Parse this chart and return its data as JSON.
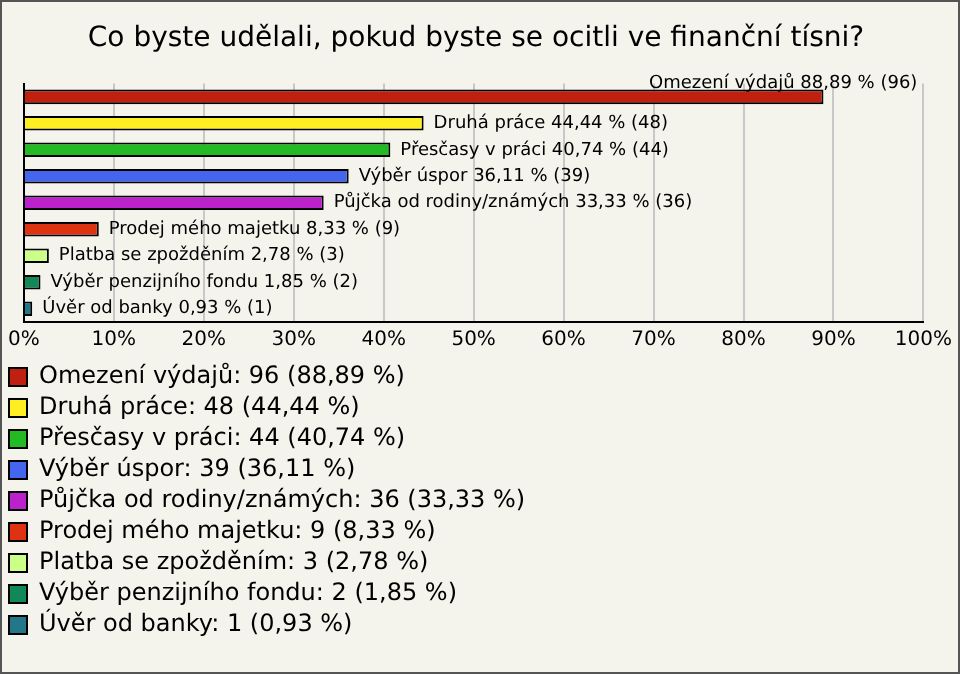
{
  "chart_data": {
    "type": "bar",
    "orientation": "horizontal",
    "stacked": true,
    "title": "Co byste udělali, pokud byste se ocitli ve finanční tísni?",
    "categories": [
      null,
      null,
      null,
      null,
      null,
      null,
      null,
      null,
      null
    ],
    "series": [
      {
        "name": "Omezení výdajů: 96 (88,89 %)",
        "color": "#c0200f",
        "values": [
          88.89,
          null,
          null,
          null,
          null,
          null,
          null,
          null,
          null
        ],
        "value_labels": [
          "Omezení výdajů 88,89 % (96)",
          null,
          null,
          null,
          null,
          null,
          null,
          null,
          null
        ]
      },
      {
        "name": "Druhá práce: 48 (44,44 %)",
        "color": "#ffee22",
        "values": [
          null,
          44.44,
          null,
          null,
          null,
          null,
          null,
          null,
          null
        ],
        "value_labels": [
          null,
          "Druhá práce 44,44 % (48)",
          null,
          null,
          null,
          null,
          null,
          null,
          null
        ]
      },
      {
        "name": "Přesčasy v práci: 44 (40,74 %)",
        "color": "#22bb22",
        "values": [
          null,
          null,
          40.74,
          null,
          null,
          null,
          null,
          null,
          null
        ],
        "value_labels": [
          null,
          null,
          "Přesčasy v práci 40,74 % (44)",
          null,
          null,
          null,
          null,
          null,
          null
        ]
      },
      {
        "name": "Výběr úspor: 39 (36,11 %)",
        "color": "#4466ee",
        "values": [
          null,
          null,
          null,
          36.11,
          null,
          null,
          null,
          null,
          null
        ],
        "value_labels": [
          null,
          null,
          null,
          "Výběr úspor 36,11 % (39)",
          null,
          null,
          null,
          null,
          null
        ]
      },
      {
        "name": "Půjčka od rodiny/známých: 36 (33,33 %)",
        "color": "#bb22cc",
        "values": [
          null,
          null,
          null,
          null,
          33.33,
          null,
          null,
          null,
          null
        ],
        "value_labels": [
          null,
          null,
          null,
          null,
          "Půjčka od rodiny/známých 33,33 % (36)",
          null,
          null,
          null,
          null
        ]
      },
      {
        "name": "Prodej mého majetku: 9 (8,33 %)",
        "color": "#dd3311",
        "values": [
          null,
          null,
          null,
          null,
          null,
          8.33,
          null,
          null,
          null
        ],
        "value_labels": [
          null,
          null,
          null,
          null,
          null,
          "Prodej mého majetku 8,33 % (9)",
          null,
          null,
          null
        ]
      },
      {
        "name": "Platba se zpožděním: 3 (2,78 %)",
        "color": "#ccff88",
        "values": [
          null,
          null,
          null,
          null,
          null,
          null,
          2.78,
          null,
          null
        ],
        "value_labels": [
          null,
          null,
          null,
          null,
          null,
          null,
          "Platba se zpožděním 2,78 % (3)",
          null,
          null
        ]
      },
      {
        "name": "Výběr penzijního fondu: 2 (1,85 %)",
        "color": "#118855",
        "values": [
          null,
          null,
          null,
          null,
          null,
          null,
          null,
          1.85,
          null
        ],
        "value_labels": [
          null,
          null,
          null,
          null,
          null,
          null,
          null,
          "Výběr penzijního fondu 1,85 % (2)",
          null
        ]
      },
      {
        "name": "Úvěr od banky: 1 (0,93 %)",
        "color": "#227788",
        "values": [
          null,
          null,
          null,
          null,
          null,
          null,
          null,
          null,
          0.93
        ],
        "value_labels": [
          null,
          null,
          null,
          null,
          null,
          null,
          null,
          null,
          "Úvěr od banky 0,93 % (1)"
        ]
      }
    ],
    "xlim": [
      0,
      100
    ],
    "xticks": [
      {
        "value": 0,
        "label": "0%"
      },
      {
        "value": 10,
        "label": "10%"
      },
      {
        "value": 20,
        "label": "20%"
      },
      {
        "value": 30,
        "label": "30%"
      },
      {
        "value": 40,
        "label": "40%"
      },
      {
        "value": 50,
        "label": "50%"
      },
      {
        "value": 60,
        "label": "60%"
      },
      {
        "value": 70,
        "label": "70%"
      },
      {
        "value": 80,
        "label": "80%"
      },
      {
        "value": 90,
        "label": "90%"
      },
      {
        "value": 100,
        "label": "100%"
      }
    ],
    "grid": "x",
    "legend": "bottom",
    "tick_labels": "x"
  }
}
